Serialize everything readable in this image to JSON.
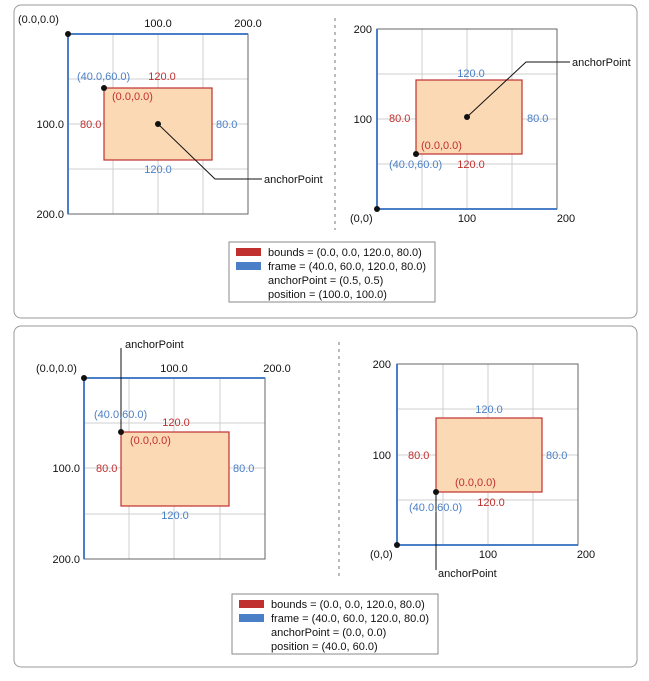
{
  "colors": {
    "bounds": "#c0302e",
    "frame": "#4a7fc8",
    "layer_fill": "#fcd9b5"
  },
  "top": {
    "left": {
      "origin_label": "(0.0,0.0)",
      "x_ticks": [
        "100.0",
        "200.0"
      ],
      "y_ticks": [
        "100.0",
        "200.0"
      ],
      "frame_origin": "(40.0,60.0)",
      "bounds_origin": "(0.0,0.0)",
      "width_top": "120.0",
      "width_bottom": "120.0",
      "height_left": "80.0",
      "height_right": "80.0",
      "anchor_label": "anchorPoint"
    },
    "right": {
      "y_ticks": [
        "200",
        "100"
      ],
      "origin_label": "(0,0)",
      "x_ticks": [
        "100",
        "200"
      ],
      "width_top": "120.0",
      "width_bottom": "120.0",
      "height_left": "80.0",
      "height_right": "80.0",
      "bounds_origin": "(0.0,0.0)",
      "frame_origin": "(40.0,60.0)",
      "anchor_label": "anchorPoint"
    },
    "legend": {
      "bounds": "bounds = (0.0, 0.0, 120.0, 80.0)",
      "frame": "frame = (40.0, 60.0, 120.0, 80.0)",
      "anchor": "anchorPoint = (0.5, 0.5)",
      "position": "position = (100.0, 100.0)"
    }
  },
  "bottom": {
    "left": {
      "origin_label": "(0.0,0.0)",
      "x_ticks": [
        "100.0",
        "200.0"
      ],
      "y_ticks": [
        "100.0",
        "200.0"
      ],
      "frame_origin": "(40.0,60.0)",
      "bounds_origin": "(0.0,0.0)",
      "width_top": "120.0",
      "width_bottom": "120.0",
      "height_left": "80.0",
      "height_right": "80.0",
      "anchor_label": "anchorPoint"
    },
    "right": {
      "y_ticks": [
        "200",
        "100"
      ],
      "origin_label": "(0,0)",
      "x_ticks": [
        "100",
        "200"
      ],
      "width_top": "120.0",
      "width_bottom": "120.0",
      "height_left": "80.0",
      "height_right": "80.0",
      "bounds_origin": "(0.0,0.0)",
      "frame_origin": "(40.0,60.0)",
      "anchor_label": "anchorPoint"
    },
    "legend": {
      "bounds": "bounds = (0.0, 0.0, 120.0, 80.0)",
      "frame": "frame = (40.0, 60.0, 120.0, 80.0)",
      "anchor": "anchorPoint = (0.0, 0.0)",
      "position": "position = (40.0, 60.0)"
    }
  }
}
